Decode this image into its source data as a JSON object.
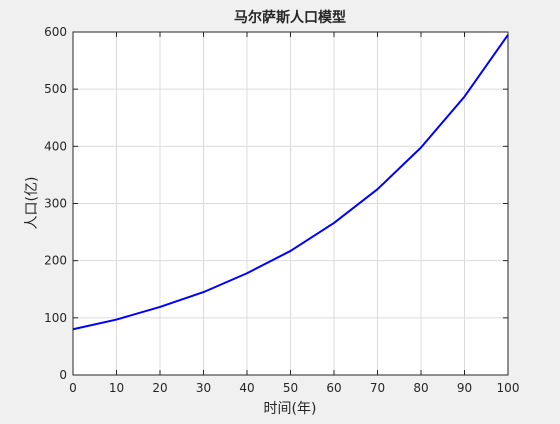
{
  "chart_data": {
    "type": "line",
    "title": "马尔萨斯人口模型",
    "xlabel": "时间(年)",
    "ylabel": "人口(亿)",
    "xlim": [
      0,
      100
    ],
    "ylim": [
      0,
      600
    ],
    "xticks": [
      0,
      10,
      20,
      30,
      40,
      50,
      60,
      70,
      80,
      90,
      100
    ],
    "yticks": [
      0,
      100,
      200,
      300,
      400,
      500,
      600
    ],
    "grid": true,
    "series": [
      {
        "color": "#0000ff",
        "x": [
          0,
          10,
          20,
          30,
          40,
          50,
          60,
          70,
          80,
          90,
          100
        ],
        "y": [
          80,
          97,
          119,
          145,
          178,
          217,
          266,
          325,
          398,
          487,
          595
        ]
      }
    ]
  }
}
